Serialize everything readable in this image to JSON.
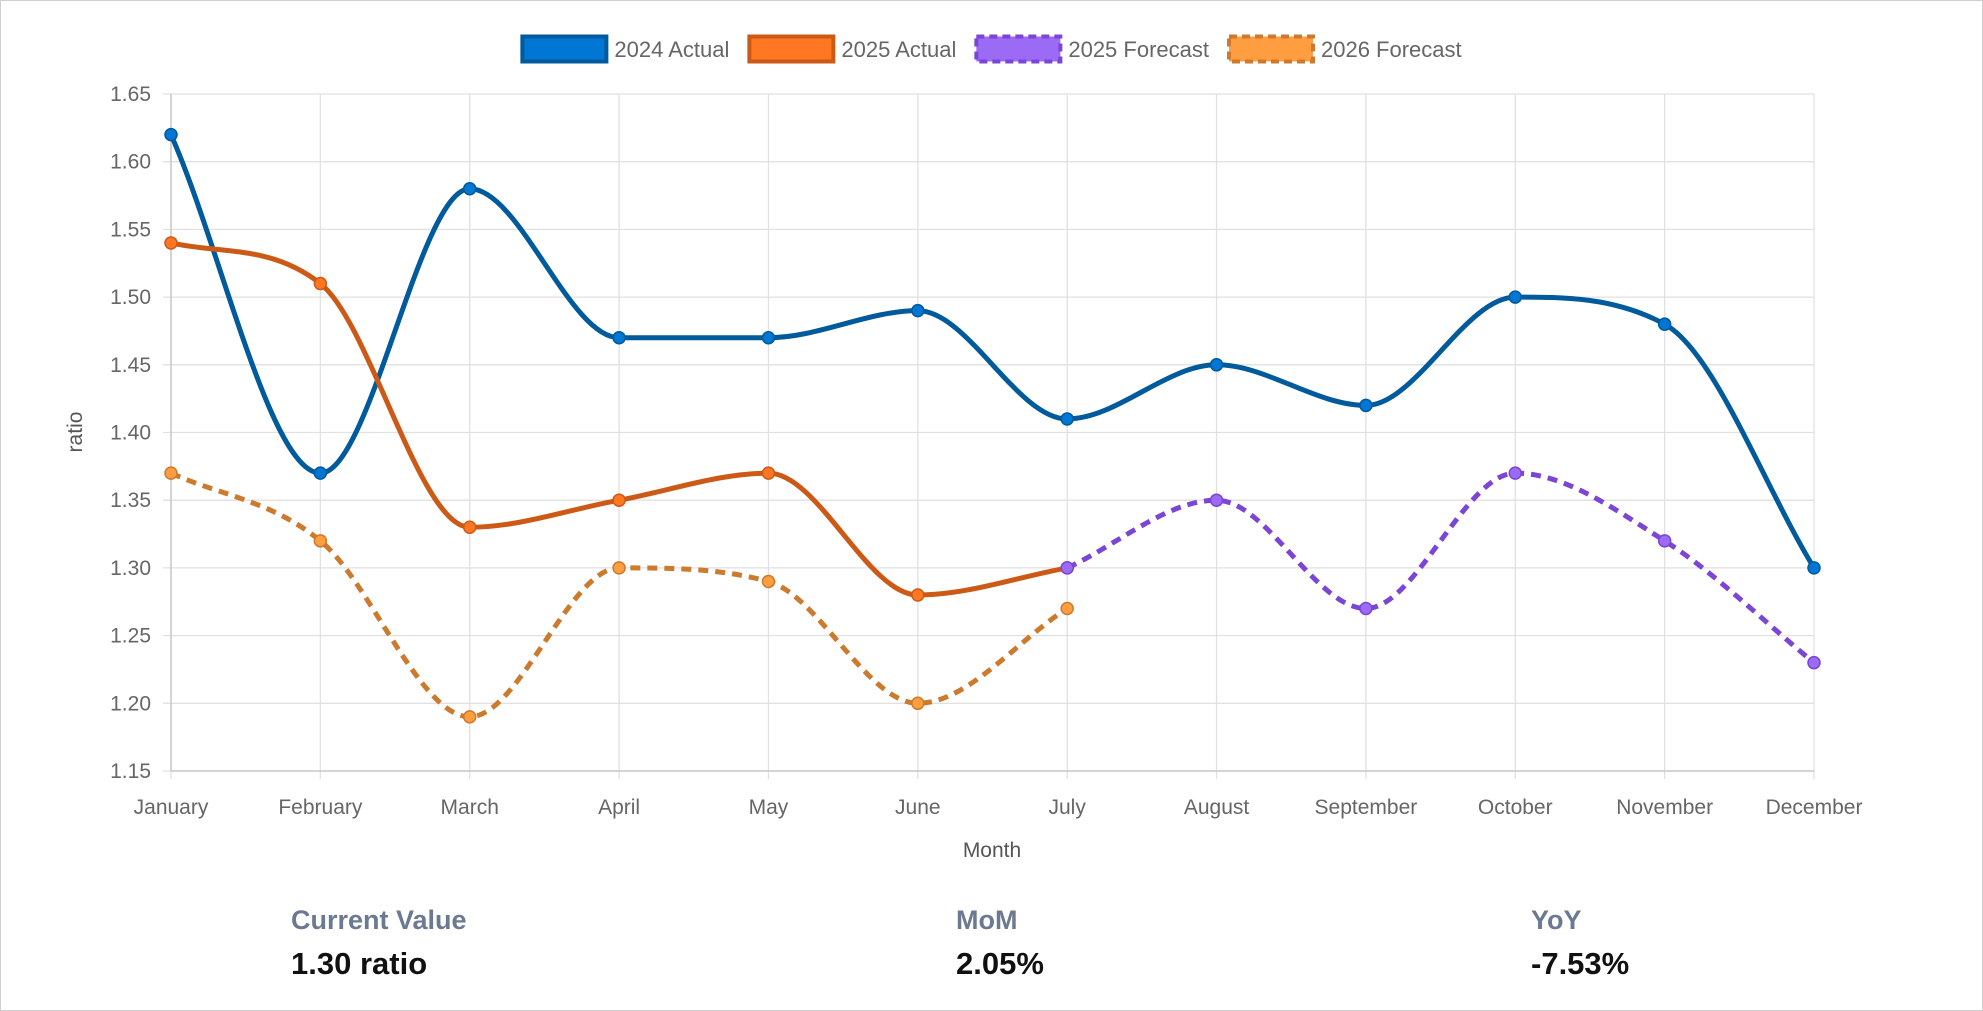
{
  "chart_data": {
    "type": "line",
    "categories": [
      "January",
      "February",
      "March",
      "April",
      "May",
      "June",
      "July",
      "August",
      "September",
      "October",
      "November",
      "December"
    ],
    "xlabel": "Month",
    "ylabel": "ratio",
    "ylim": [
      1.15,
      1.65
    ],
    "yticks": [
      1.15,
      1.2,
      1.25,
      1.3,
      1.35,
      1.4,
      1.45,
      1.5,
      1.55,
      1.6,
      1.65
    ],
    "grid": true,
    "legend_position": "top-center",
    "series": [
      {
        "name": "2024 Actual",
        "color": "#005a9c",
        "fill": "#0077d4",
        "dashed": false,
        "values": [
          1.62,
          1.37,
          1.58,
          1.47,
          1.47,
          1.49,
          1.41,
          1.45,
          1.42,
          1.5,
          1.48,
          1.3
        ]
      },
      {
        "name": "2025 Actual",
        "color": "#cc5a16",
        "fill": "#ff7722",
        "dashed": false,
        "values": [
          1.54,
          1.51,
          1.33,
          1.35,
          1.37,
          1.28,
          1.3,
          null,
          null,
          null,
          null,
          null
        ]
      },
      {
        "name": "2025 Forecast",
        "color": "#7b45d6",
        "fill": "#9b6bf5",
        "dashed": true,
        "values": [
          null,
          null,
          null,
          null,
          null,
          null,
          1.3,
          1.35,
          1.27,
          1.37,
          1.32,
          1.23
        ]
      },
      {
        "name": "2026 Forecast",
        "color": "#cc7a2e",
        "fill": "#ff9e40",
        "dashed": true,
        "values": [
          1.37,
          1.32,
          1.19,
          1.3,
          1.29,
          1.2,
          1.27,
          null,
          null,
          null,
          null,
          null
        ]
      }
    ]
  },
  "stats": [
    {
      "label": "Current Value",
      "value": "1.30 ratio"
    },
    {
      "label": "MoM",
      "value": "2.05%"
    },
    {
      "label": "YoY",
      "value": "-7.53%"
    }
  ]
}
